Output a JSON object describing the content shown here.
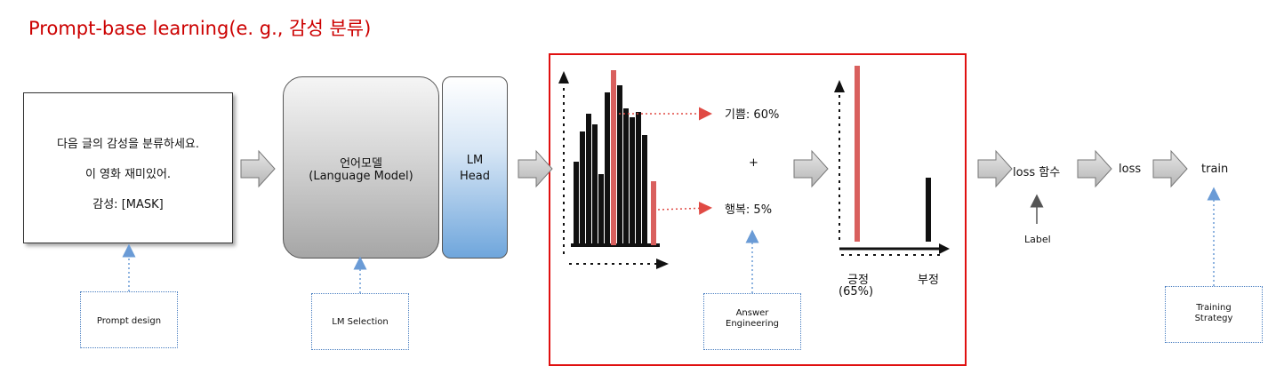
{
  "title": "Prompt-base learning(e. g., 감성 분류)",
  "prompt_box": {
    "line1": "다음 글의 감성을 분류하세요.",
    "line2": "이 영화 재미있어.",
    "line3": "감성: [MASK]"
  },
  "lm": {
    "name_ko": "언어모델",
    "name_en": "(Language Model)",
    "head_line1": "LM",
    "head_line2": "Head"
  },
  "annotations": {
    "prompt_design": "Prompt design",
    "lm_selection": "LM Selection",
    "answer_engineering_1": "Answer",
    "answer_engineering_2": "Engineering",
    "training_strategy_1": "Training",
    "training_strategy_2": "Strategy"
  },
  "answers": {
    "joy": "기쁨: 60%",
    "plus": "+",
    "happiness": "행복: 5%"
  },
  "output": {
    "positive": "긍정",
    "positive_pct": "(65%)",
    "negative": "부정",
    "positive_value": 65,
    "negative_value": 25
  },
  "pipeline": {
    "loss_fn": "loss 함수",
    "label": "Label",
    "loss": "loss",
    "train": "train"
  },
  "colors": {
    "title": "#cc0000",
    "highlight_frame": "#e01010",
    "highlight_bar": "#d9605e",
    "dotted_link": "#4a7fc1"
  }
}
